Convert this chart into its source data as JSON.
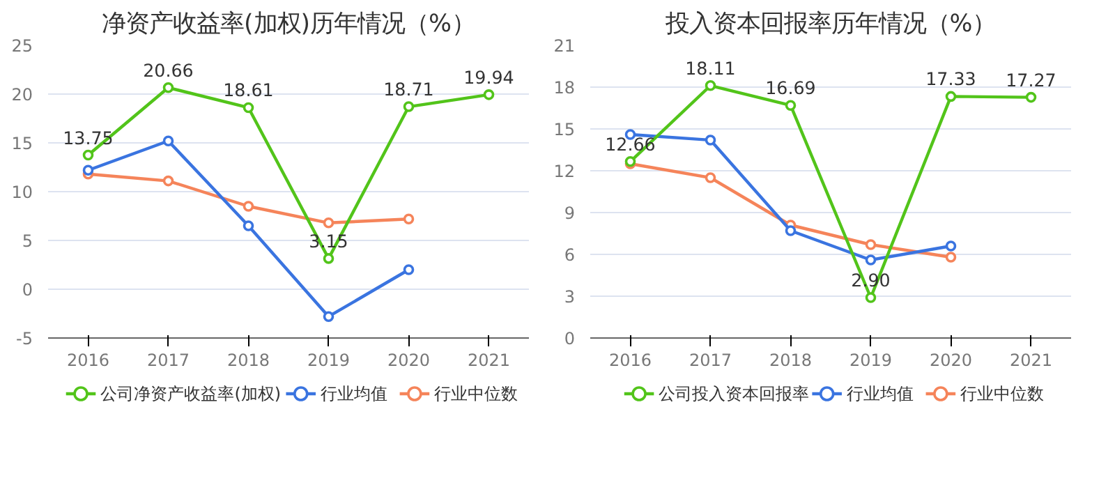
{
  "chart_data": [
    {
      "type": "line",
      "title": "净资产收益率(加权)历年情况（%）",
      "categories": [
        "2016",
        "2017",
        "2018",
        "2019",
        "2020",
        "2021"
      ],
      "ylim": [
        -5,
        25
      ],
      "yticks": [
        -5,
        0,
        5,
        10,
        15,
        20,
        25
      ],
      "grid": "y",
      "legend": "bottom",
      "marker": "circle",
      "series": [
        {
          "name": "公司净资产收益率(加权)",
          "color": "#52c41a",
          "values": [
            13.75,
            20.66,
            18.61,
            3.15,
            18.71,
            19.94
          ],
          "value_labels": [
            "13.75",
            "20.66",
            "18.61",
            "3.15",
            "18.71",
            "19.94"
          ]
        },
        {
          "name": "行业均值",
          "color": "#3a74e0",
          "values": [
            12.2,
            15.2,
            6.5,
            -2.8,
            2.0,
            null
          ]
        },
        {
          "name": "行业中位数",
          "color": "#f5845a",
          "values": [
            11.8,
            11.1,
            8.5,
            6.8,
            7.2,
            null
          ]
        }
      ]
    },
    {
      "type": "line",
      "title": "投入资本回报率历年情况（%）",
      "categories": [
        "2016",
        "2017",
        "2018",
        "2019",
        "2020",
        "2021"
      ],
      "ylim": [
        0,
        21
      ],
      "yticks": [
        0,
        3,
        6,
        9,
        12,
        15,
        18,
        21
      ],
      "grid": "y",
      "legend": "bottom",
      "marker": "circle",
      "series": [
        {
          "name": "公司投入资本回报率",
          "color": "#52c41a",
          "values": [
            12.66,
            18.11,
            16.69,
            2.9,
            17.33,
            17.27
          ],
          "value_labels": [
            "12.66",
            "18.11",
            "16.69",
            "2.90",
            "17.33",
            "17.27"
          ]
        },
        {
          "name": "行业均值",
          "color": "#3a74e0",
          "values": [
            14.6,
            14.2,
            7.7,
            5.6,
            6.6,
            null
          ]
        },
        {
          "name": "行业中位数",
          "color": "#f5845a",
          "values": [
            12.5,
            11.5,
            8.1,
            6.7,
            5.8,
            null
          ]
        }
      ]
    }
  ]
}
